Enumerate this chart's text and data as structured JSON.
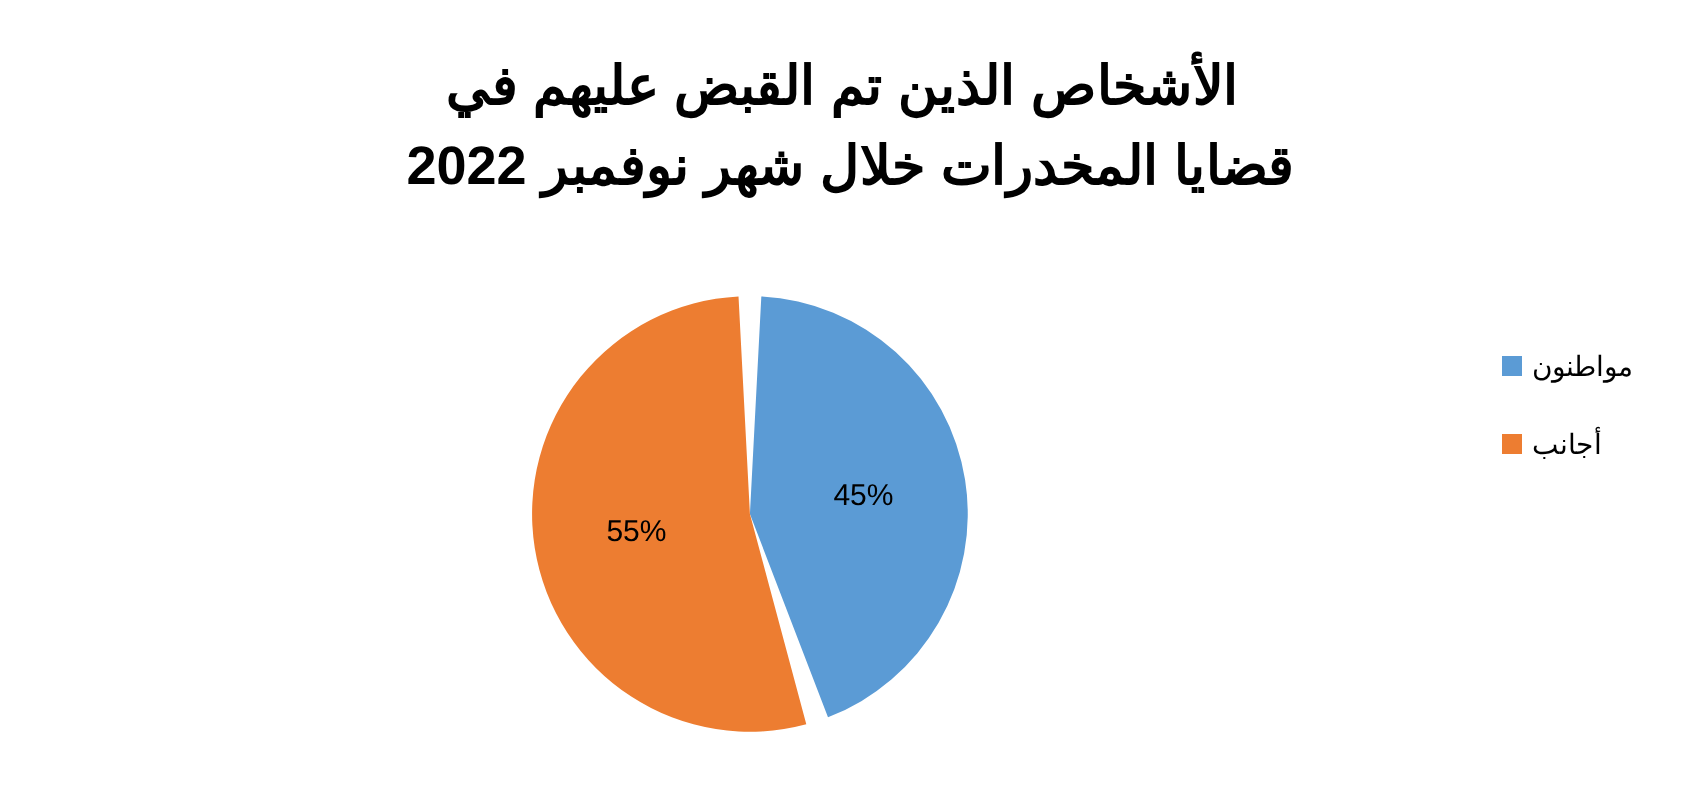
{
  "chart_data": {
    "type": "pie",
    "title": "الأشخاص الذين تم القبض عليهم في قضايا المخدرات خلال شهر نوفمبر 2022",
    "categories": [
      "مواطنون",
      "أجانب"
    ],
    "values": [
      45,
      55
    ],
    "colors": [
      "#5b9bd5",
      "#ed7d31"
    ],
    "value_labels": [
      "45%",
      "55%"
    ],
    "legend": "right"
  }
}
